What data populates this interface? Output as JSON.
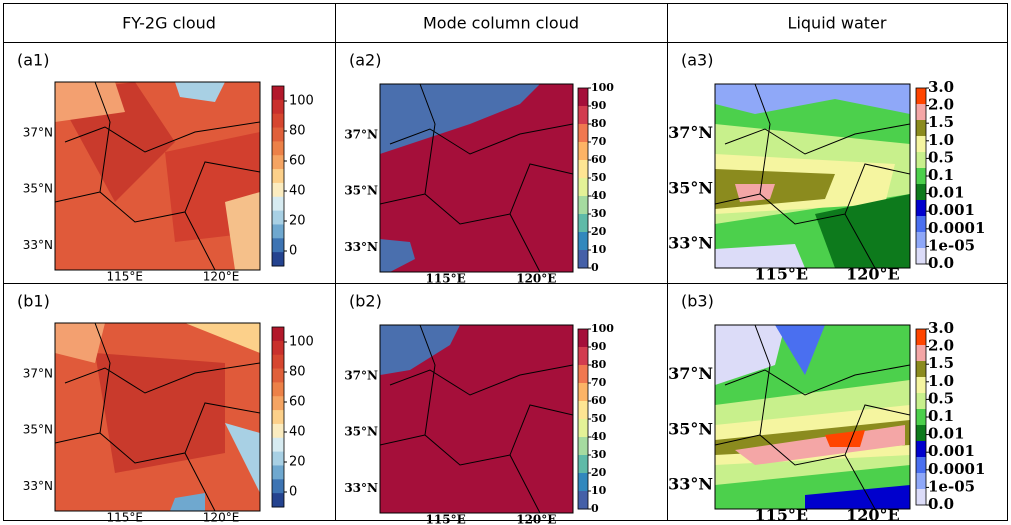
{
  "header": [
    "FY-2G cloud",
    "Mode column cloud",
    "Liquid water"
  ],
  "rows": [
    {
      "panels": [
        {
          "label": "(a1)",
          "lat": [
            "37°N",
            "35°N",
            "33°N"
          ],
          "lon": [
            "115°E",
            "120°E"
          ],
          "colorbar": [
            "100",
            "80",
            "60",
            "40",
            "20",
            "0"
          ]
        },
        {
          "label": "(a2)",
          "lat": [
            "37°N",
            "35°N",
            "33°N"
          ],
          "lon": [
            "115°E",
            "120°E"
          ],
          "colorbar": [
            "100",
            "90",
            "80",
            "70",
            "60",
            "50",
            "40",
            "30",
            "20",
            "10",
            "0"
          ]
        },
        {
          "label": "(a3)",
          "lat": [
            "37°N",
            "35°N",
            "33°N"
          ],
          "lon": [
            "115°E",
            "120°E"
          ],
          "colorbar": [
            "3.0",
            "2.0",
            "1.5",
            "1.0",
            "0.5",
            "0.1",
            "0.01",
            "0.001",
            "0.0001",
            "1e-05",
            "0.0"
          ]
        }
      ]
    },
    {
      "panels": [
        {
          "label": "(b1)",
          "lat": [
            "37°N",
            "35°N",
            "33°N"
          ],
          "lon": [
            "115°E",
            "120°E"
          ],
          "colorbar": [
            "100",
            "80",
            "60",
            "40",
            "20",
            "0"
          ]
        },
        {
          "label": "(b2)",
          "lat": [
            "37°N",
            "35°N",
            "33°N"
          ],
          "lon": [
            "115°E",
            "120°E"
          ],
          "colorbar": [
            "100",
            "90",
            "80",
            "70",
            "60",
            "50",
            "40",
            "30",
            "20",
            "10",
            "0"
          ]
        },
        {
          "label": "(b3)",
          "lat": [
            "37°N",
            "35°N",
            "33°N"
          ],
          "lon": [
            "115°E",
            "120°E"
          ],
          "colorbar": [
            "3.0",
            "2.0",
            "1.5",
            "1.0",
            "0.5",
            "0.1",
            "0.01",
            "0.001",
            "0.0001",
            "1e-05",
            "0.0"
          ]
        }
      ]
    }
  ]
}
